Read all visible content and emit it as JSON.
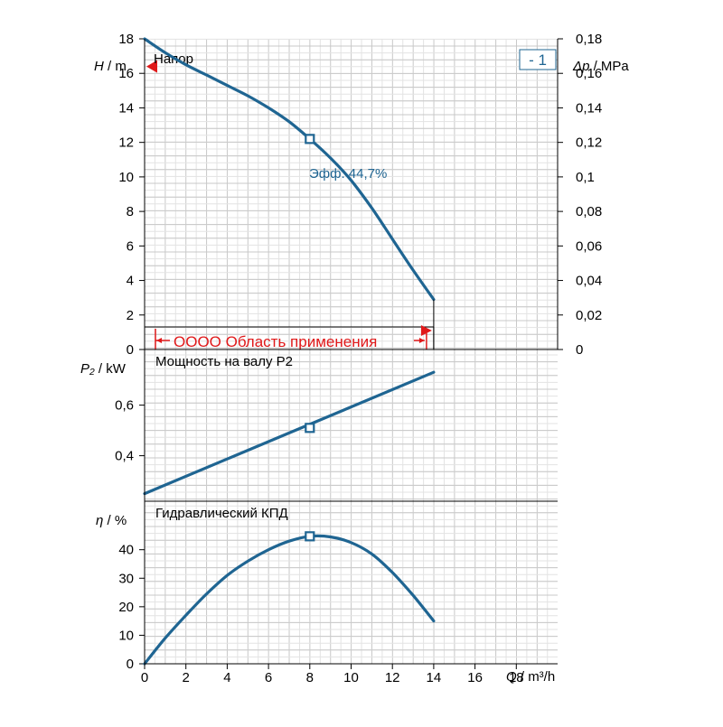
{
  "chart_data": [
    {
      "type": "line",
      "title": "Напор",
      "ylabel_symbol": "H",
      "ylabel_unit": "m",
      "y2label_symbol": "Δp",
      "y2label_unit": "MPa",
      "ylim": [
        0,
        18
      ],
      "yticks": [
        "0",
        "2",
        "4",
        "6",
        "8",
        "10",
        "12",
        "14",
        "16",
        "18"
      ],
      "y2lim": [
        0,
        0.18
      ],
      "y2ticks": [
        "0",
        "0,02",
        "0,04",
        "0,06",
        "0,08",
        "0,1",
        "0,12",
        "0,14",
        "0,16",
        "0,18"
      ],
      "series": [
        {
          "x": [
            0,
            1,
            2,
            3,
            4,
            5,
            6,
            7,
            8,
            9,
            10,
            11,
            12,
            13,
            14
          ],
          "y": [
            18,
            17.2,
            16.5,
            15.9,
            15.3,
            14.7,
            14.0,
            13.2,
            12.2,
            11.1,
            9.8,
            8.2,
            6.4,
            4.6,
            2.9
          ]
        }
      ],
      "duty_point": {
        "x": 8,
        "y": 12.2,
        "label": "Эфф.  44,7%"
      },
      "head_marker": {
        "y": 16.4
      },
      "range_label": "OOOO Область применения",
      "range": [
        0,
        14
      ],
      "badge": "- 1"
    },
    {
      "type": "line",
      "title": "Мощность на валу P2",
      "ylabel_symbol": "P₂",
      "ylabel_unit": "kW",
      "ylim": [
        0.22,
        0.82
      ],
      "yticks": [
        "0,4",
        "0,6"
      ],
      "ytick_values": [
        0.4,
        0.6
      ],
      "series": [
        {
          "x": [
            0,
            14
          ],
          "y": [
            0.25,
            0.73
          ]
        }
      ],
      "duty_point": {
        "x": 8,
        "y": 0.51
      }
    },
    {
      "type": "line",
      "title": "Гидравлический КПД",
      "ylabel_symbol": "η",
      "ylabel_unit": "%",
      "ylim": [
        0,
        57
      ],
      "yticks": [
        "0",
        "10",
        "20",
        "30",
        "40"
      ],
      "series": [
        {
          "x": [
            0,
            1,
            2,
            3,
            4,
            5,
            6,
            7,
            8,
            9,
            10,
            11,
            12,
            13,
            14
          ],
          "y": [
            0,
            9,
            17,
            24.5,
            31,
            36,
            40,
            43,
            44.7,
            44.5,
            42.5,
            38.5,
            32,
            24,
            15
          ]
        }
      ],
      "duty_point": {
        "x": 8,
        "y": 44.7
      }
    }
  ],
  "x_axis": {
    "symbol": "Q",
    "unit": "m³/h",
    "xlim": [
      0,
      20
    ],
    "ticks": [
      "0",
      "2",
      "4",
      "6",
      "8",
      "10",
      "12",
      "14",
      "16",
      "18"
    ]
  },
  "colors": {
    "curve": "#1f6592",
    "range": "#e0191a",
    "axis": "#000000",
    "duty_label": "#1f6592"
  }
}
